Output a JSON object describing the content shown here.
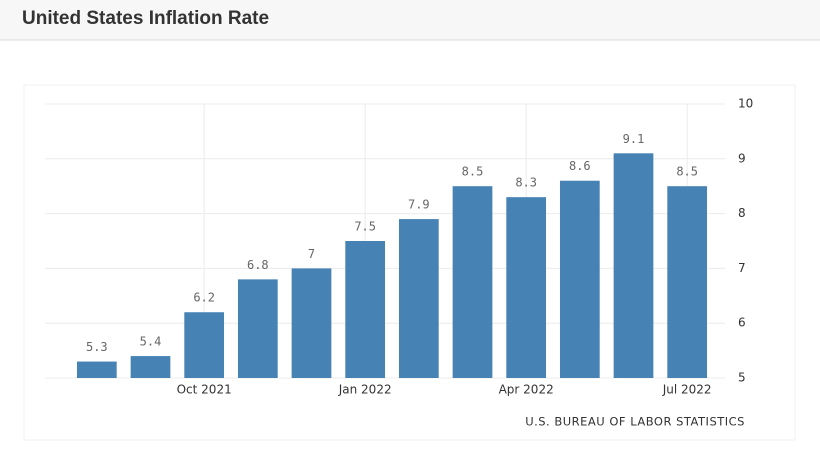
{
  "chart_data": {
    "type": "bar",
    "title": "United States Inflation Rate",
    "categories": [
      null,
      null,
      "Oct 2021",
      null,
      null,
      "Jan 2022",
      null,
      null,
      "Apr 2022",
      null,
      null,
      "Jul 2022"
    ],
    "values": [
      5.3,
      5.4,
      6.2,
      6.8,
      7,
      7.5,
      7.9,
      8.5,
      8.3,
      8.6,
      9.1,
      8.5
    ],
    "color": "#4682b4",
    "ylim": [
      5,
      10
    ],
    "yticks": [
      5,
      6,
      7,
      8,
      9,
      10
    ],
    "grid": true,
    "source": "U.S. BUREAU OF LABOR STATISTICS"
  }
}
